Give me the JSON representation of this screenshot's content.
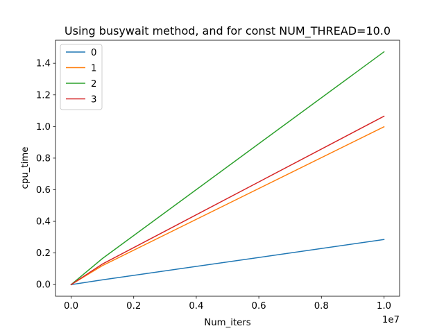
{
  "chart_data": {
    "type": "line",
    "title": "Using busywait method, and for const NUM_THREAD=10.0",
    "xlabel": "Num_iters",
    "ylabel": "cpu_time",
    "x_offset_label": "1e7",
    "x": [
      0,
      1000000,
      10000000
    ],
    "series": [
      {
        "name": "0",
        "color": "#1f77b4",
        "values": [
          0.0,
          0.03,
          0.285
        ]
      },
      {
        "name": "1",
        "color": "#ff7f0e",
        "values": [
          0.0,
          0.12,
          0.998
        ]
      },
      {
        "name": "2",
        "color": "#2ca02c",
        "values": [
          0.0,
          0.165,
          1.472
        ]
      },
      {
        "name": "3",
        "color": "#d62728",
        "values": [
          0.0,
          0.13,
          1.065
        ]
      }
    ],
    "xlim": [
      -500000,
      10500000
    ],
    "ylim": [
      -0.0736,
      1.5456
    ],
    "x_ticks": [
      0,
      2000000,
      4000000,
      6000000,
      8000000,
      10000000
    ],
    "x_tick_labels": [
      "0.0",
      "0.2",
      "0.4",
      "0.6",
      "0.8",
      "1.0"
    ],
    "y_ticks": [
      0.0,
      0.2,
      0.4,
      0.6,
      0.8,
      1.0,
      1.2,
      1.4
    ],
    "y_tick_labels": [
      "0.0",
      "0.2",
      "0.4",
      "0.6",
      "0.8",
      "1.0",
      "1.2",
      "1.4"
    ],
    "grid": false,
    "legend_position": "upper-left"
  }
}
